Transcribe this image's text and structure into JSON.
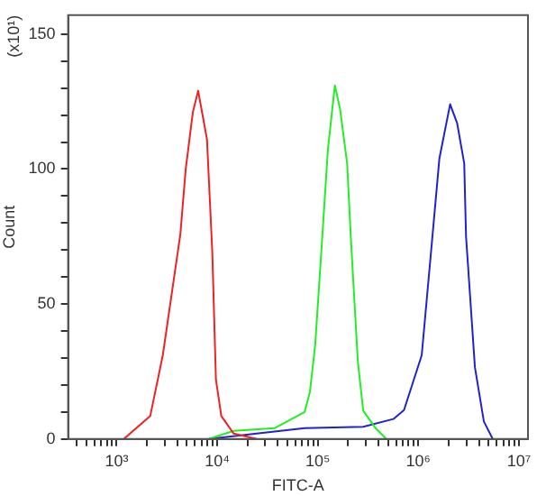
{
  "chart_data": {
    "type": "line",
    "xlabel": "FITC-A",
    "ylabel": "Count",
    "annotations": [
      "(x10¹)"
    ],
    "log": "x",
    "grid": false,
    "legend": false,
    "marker": "none",
    "line_style": "solid",
    "xlim": [
      330,
      12300000
    ],
    "xticks": [
      {
        "value": 400,
        "label": null
      },
      {
        "value": 500,
        "label": null
      },
      {
        "value": 600,
        "label": null
      },
      {
        "value": 700,
        "label": null
      },
      {
        "value": 800,
        "label": null
      },
      {
        "value": 900,
        "label": null
      },
      {
        "value": 1000,
        "label": "10³"
      },
      {
        "value": 2000,
        "label": null
      },
      {
        "value": 3000,
        "label": null
      },
      {
        "value": 4000,
        "label": null
      },
      {
        "value": 5000,
        "label": null
      },
      {
        "value": 6000,
        "label": null
      },
      {
        "value": 7000,
        "label": null
      },
      {
        "value": 8000,
        "label": null
      },
      {
        "value": 9000,
        "label": null
      },
      {
        "value": 10000,
        "label": "10⁴"
      },
      {
        "value": 20000,
        "label": null
      },
      {
        "value": 30000,
        "label": null
      },
      {
        "value": 40000,
        "label": null
      },
      {
        "value": 50000,
        "label": null
      },
      {
        "value": 60000,
        "label": null
      },
      {
        "value": 70000,
        "label": null
      },
      {
        "value": 80000,
        "label": null
      },
      {
        "value": 90000,
        "label": null
      },
      {
        "value": 100000,
        "label": "10⁵"
      },
      {
        "value": 200000,
        "label": null
      },
      {
        "value": 300000,
        "label": null
      },
      {
        "value": 400000,
        "label": null
      },
      {
        "value": 500000,
        "label": null
      },
      {
        "value": 600000,
        "label": null
      },
      {
        "value": 700000,
        "label": null
      },
      {
        "value": 800000,
        "label": null
      },
      {
        "value": 900000,
        "label": null
      },
      {
        "value": 1000000,
        "label": "10⁶"
      },
      {
        "value": 2000000,
        "label": null
      },
      {
        "value": 3000000,
        "label": null
      },
      {
        "value": 4000000,
        "label": null
      },
      {
        "value": 5000000,
        "label": null
      },
      {
        "value": 6000000,
        "label": null
      },
      {
        "value": 7000000,
        "label": null
      },
      {
        "value": 8000000,
        "label": null
      },
      {
        "value": 9000000,
        "label": null
      },
      {
        "value": 10000000,
        "label": "10⁷"
      }
    ],
    "ylim": [
      0,
      157
    ],
    "yticks": [
      0,
      {
        "value": 10,
        "label": null
      },
      {
        "value": 20,
        "label": null
      },
      {
        "value": 30,
        "label": null
      },
      {
        "value": 40,
        "label": null
      },
      50,
      {
        "value": 60,
        "label": null
      },
      {
        "value": 70,
        "label": null
      },
      {
        "value": 80,
        "label": null
      },
      {
        "value": 90,
        "label": null
      },
      100,
      {
        "value": 110,
        "label": null
      },
      {
        "value": 120,
        "label": null
      },
      {
        "value": 130,
        "label": null
      },
      {
        "value": 140,
        "label": null
      },
      150
    ],
    "series": [
      {
        "color": "#ee2222",
        "x": [
          1180,
          2160,
          2880,
          4310,
          4870,
          5730,
          6470,
          7920,
          8950,
          9720,
          11000,
          14600,
          24700
        ],
        "values": [
          0,
          8.5,
          31,
          76,
          100,
          121,
          129,
          111,
          69,
          22,
          8.5,
          2,
          0
        ]
      },
      {
        "color": "#22ee22",
        "x": [
          8260,
          14600,
          37100,
          74100,
          83600,
          94400,
          111000,
          126000,
          148000,
          167000,
          196000,
          213000,
          250000,
          283000,
          376000,
          480000
        ],
        "values": [
          0,
          3,
          4,
          10,
          17.5,
          35,
          75,
          107,
          131,
          122,
          102,
          75,
          29,
          10.5,
          4,
          0
        ]
      },
      {
        "color": "#2222cc",
        "x": [
          8260,
          24700,
          74100,
          283000,
          564000,
          720000,
          1080000,
          1380000,
          1620000,
          2070000,
          2430000,
          2860000,
          2980000,
          3650000,
          4480000,
          5490000
        ],
        "values": [
          0,
          2,
          4,
          4.5,
          7.4,
          10.7,
          31,
          75,
          104,
          124,
          117,
          102,
          75,
          26.6,
          6.5,
          0
        ]
      }
    ]
  }
}
